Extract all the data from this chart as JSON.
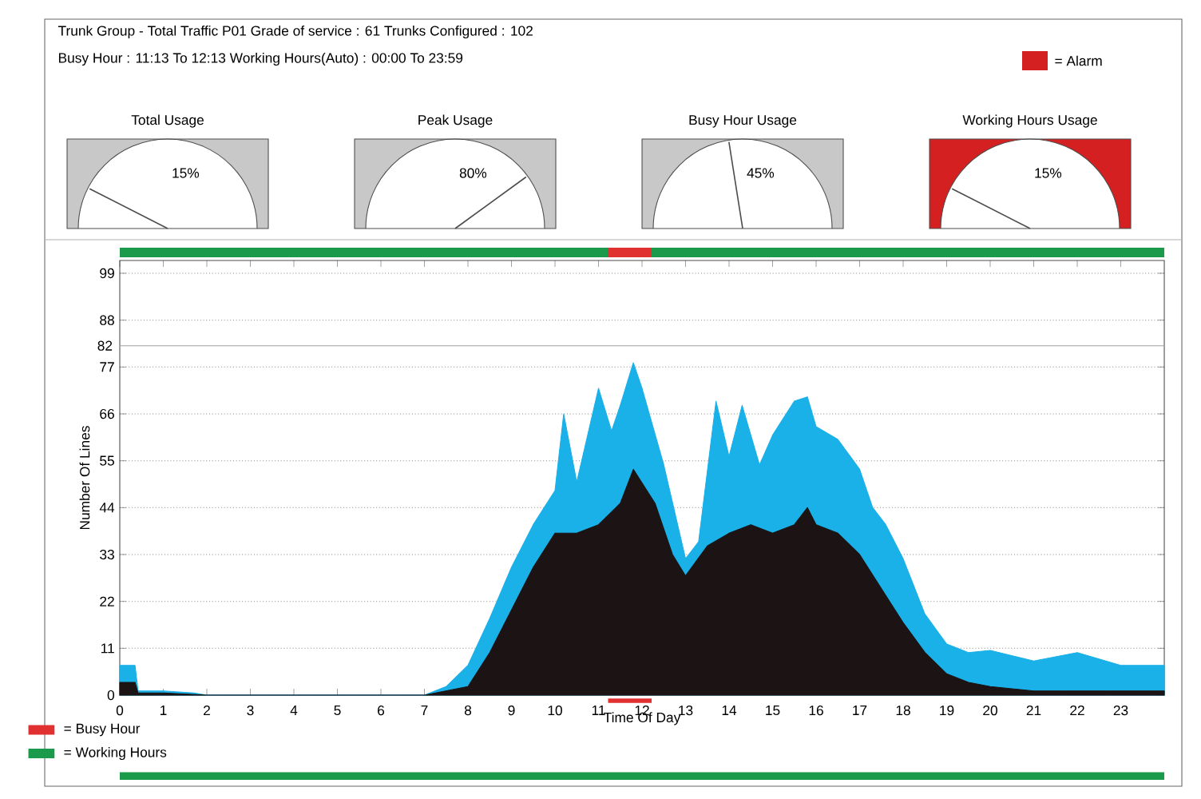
{
  "chart_data": [
    {
      "type": "other",
      "title": "Trunk Group - Total Traffic    P01 Grade of service : 61    Trunks Configured : 102",
      "subtitle": "Busy Hour : 11:13 To 12:13    Working Hours(Auto) : 00:00 To 23:59",
      "legend": "top right",
      "series": [
        {
          "name": "= Alarm",
          "color": "#d42020"
        }
      ]
    },
    {
      "type": "other",
      "title": "Total Usage",
      "values": [
        15
      ],
      "value_labels": [
        "15%"
      ],
      "color": "#c8c8c8"
    },
    {
      "type": "other",
      "title": "Peak Usage",
      "values": [
        80
      ],
      "value_labels": [
        "80%"
      ],
      "color": "#c8c8c8"
    },
    {
      "type": "other",
      "title": "Busy Hour Usage",
      "values": [
        45
      ],
      "value_labels": [
        "45%"
      ],
      "color": "#c8c8c8"
    },
    {
      "type": "other",
      "title": "Working Hours Usage",
      "values": [
        15
      ],
      "value_labels": [
        "15%"
      ],
      "color": "#d42020"
    },
    {
      "type": "area",
      "xlabel": "Time Of Day",
      "ylabel": "Number Of Lines",
      "xlim": [
        0,
        24
      ],
      "ylim": [
        0,
        102
      ],
      "xticks": [
        0,
        1,
        2,
        3,
        4,
        5,
        6,
        7,
        8,
        9,
        10,
        11,
        12,
        13,
        14,
        15,
        16,
        17,
        18,
        19,
        20,
        21,
        22,
        23
      ],
      "yticks": [
        0,
        11,
        22,
        33,
        44,
        55,
        66,
        77,
        88,
        99
      ],
      "grid": "y",
      "ref_lines": [
        {
          "axis": "y",
          "value": 82,
          "label": "82",
          "color": "#a0a0a0"
        }
      ],
      "series": [
        {
          "color": "#1ab0e8",
          "x": [
            0,
            0.35,
            0.42,
            1,
            1.7,
            2,
            7,
            7.5,
            8,
            8.5,
            9,
            9.5,
            10,
            10.2,
            10.5,
            11,
            11.3,
            11.5,
            11.8,
            12,
            12.5,
            13,
            13.3,
            13.7,
            14,
            14.3,
            14.7,
            15,
            15.5,
            15.8,
            16,
            16.5,
            17,
            17.3,
            17.6,
            18,
            18.5,
            19,
            19.5,
            20,
            21,
            22,
            23,
            24
          ],
          "values": [
            7,
            7,
            1,
            1,
            0.5,
            0,
            0,
            2,
            7,
            18,
            30,
            40,
            48,
            66,
            50,
            72,
            62,
            68,
            78,
            72,
            54,
            32,
            36,
            69,
            56,
            68,
            54,
            61,
            69,
            70,
            63,
            60,
            53,
            44,
            40,
            32,
            19,
            12,
            10,
            10.5,
            8,
            10,
            7,
            7
          ]
        },
        {
          "color": "#1c1414",
          "x": [
            0,
            0.35,
            0.42,
            1,
            2,
            7,
            7.5,
            8,
            8.5,
            9,
            9.5,
            10,
            10.5,
            11,
            11.5,
            11.8,
            12.3,
            12.7,
            13,
            13.5,
            14,
            14.5,
            15,
            15.5,
            15.8,
            16,
            16.5,
            17,
            17.5,
            18,
            18.5,
            19,
            19.5,
            20,
            21,
            22,
            23,
            24
          ],
          "values": [
            3,
            3,
            0.5,
            0.5,
            0,
            0,
            1,
            2,
            10,
            20,
            30,
            38,
            38,
            40,
            45,
            53,
            45,
            33,
            28,
            35,
            38,
            40,
            38,
            40,
            44,
            40,
            38,
            33,
            25,
            17,
            10,
            5,
            3,
            2,
            1,
            1,
            1,
            1
          ]
        }
      ]
    },
    {
      "type": "bar",
      "orientation": "horizontal",
      "categories": [
        null
      ],
      "xlim": [
        0,
        24
      ],
      "tick_labels": false,
      "legend": "bottom left",
      "series": [
        {
          "name": "= Working Hours",
          "color": "#1a9a4a",
          "values": [
            24
          ],
          "base": [
            0
          ]
        },
        {
          "name": "= Busy Hour",
          "color": "#e03030",
          "values": [
            1
          ],
          "base": [
            11.22
          ]
        }
      ]
    }
  ]
}
